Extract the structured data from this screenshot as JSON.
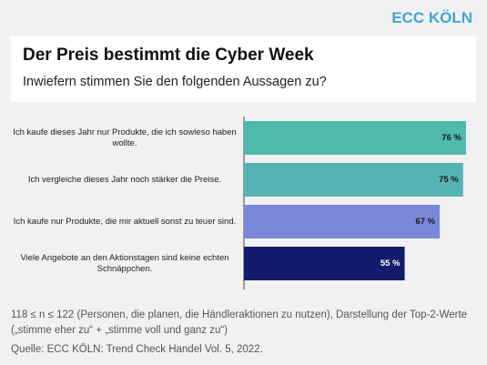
{
  "brand": "ECC KÖLN",
  "chart_data": {
    "type": "bar",
    "orientation": "horizontal",
    "title": "Der Preis bestimmt die Cyber Week",
    "subtitle": "Inwiefern stimmen Sie den folgenden Aussagen zu?",
    "categories": [
      "Ich kaufe dieses Jahr nur Produkte, die ich sowieso haben wollte.",
      "Ich vergleiche dieses Jahr noch stärker die Preise.",
      "Ich kaufe nur Produkte, die mir aktuell sonst zu teuer sind.",
      "Viele Angebote an den Aktionstagen sind keine echten Schnäppchen."
    ],
    "values": [
      76,
      75,
      67,
      55
    ],
    "value_labels": [
      "76 %",
      "75 %",
      "67 %",
      "55 %"
    ],
    "colors": [
      "#4dbaac",
      "#55b4b3",
      "#7a89d7",
      "#141a6c"
    ],
    "label_colors": [
      "#1a1a1a",
      "#1a1a1a",
      "#1a1a1a",
      "#ffffff"
    ],
    "footnote": "118 ≤ n ≤ 122 (Personen, die planen, die Händleraktionen zu nutzen), Darstellung der Top-2-Werte („stimme eher zu“ + „stimme voll und ganz zu“)",
    "source": "Quelle: ECC KÖLN: Trend Check Handel Vol. 5, 2022."
  }
}
